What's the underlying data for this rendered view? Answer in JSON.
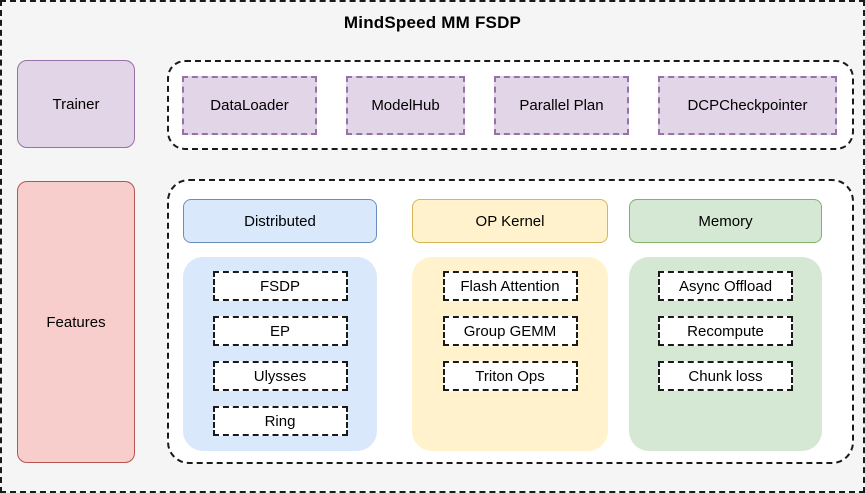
{
  "title": "MindSpeed MM FSDP",
  "left_column": {
    "trainer_label": "Trainer",
    "features_label": "Features"
  },
  "components": {
    "items": [
      "DataLoader",
      "ModelHub",
      "Parallel Plan",
      "DCPCheckpointer"
    ]
  },
  "feature_groups": [
    {
      "name": "Distributed",
      "fill": "#dae8fc",
      "border": "#6c8ebf",
      "items": [
        "FSDP",
        "EP",
        "Ulysses",
        "Ring"
      ]
    },
    {
      "name": "OP Kernel",
      "fill": "#fff2cc",
      "border": "#d6b656",
      "items": [
        "Flash Attention",
        "Group GEMM",
        "Triton Ops"
      ]
    },
    {
      "name": "Memory",
      "fill": "#d5e8d4",
      "border": "#82b366",
      "items": [
        "Async Offload",
        "Recompute",
        "Chunk loss"
      ]
    }
  ],
  "palette": {
    "background": "#f5f5f5",
    "container_fill": "#ffffff",
    "dashed_border": "#1a1a1a",
    "trainer_fill": "#e1d5e7",
    "trainer_border": "#9673a6",
    "component_fill": "#e1d5e7",
    "component_border": "#9673a6",
    "features_fill": "#f8cecc",
    "features_border": "#b85450"
  }
}
